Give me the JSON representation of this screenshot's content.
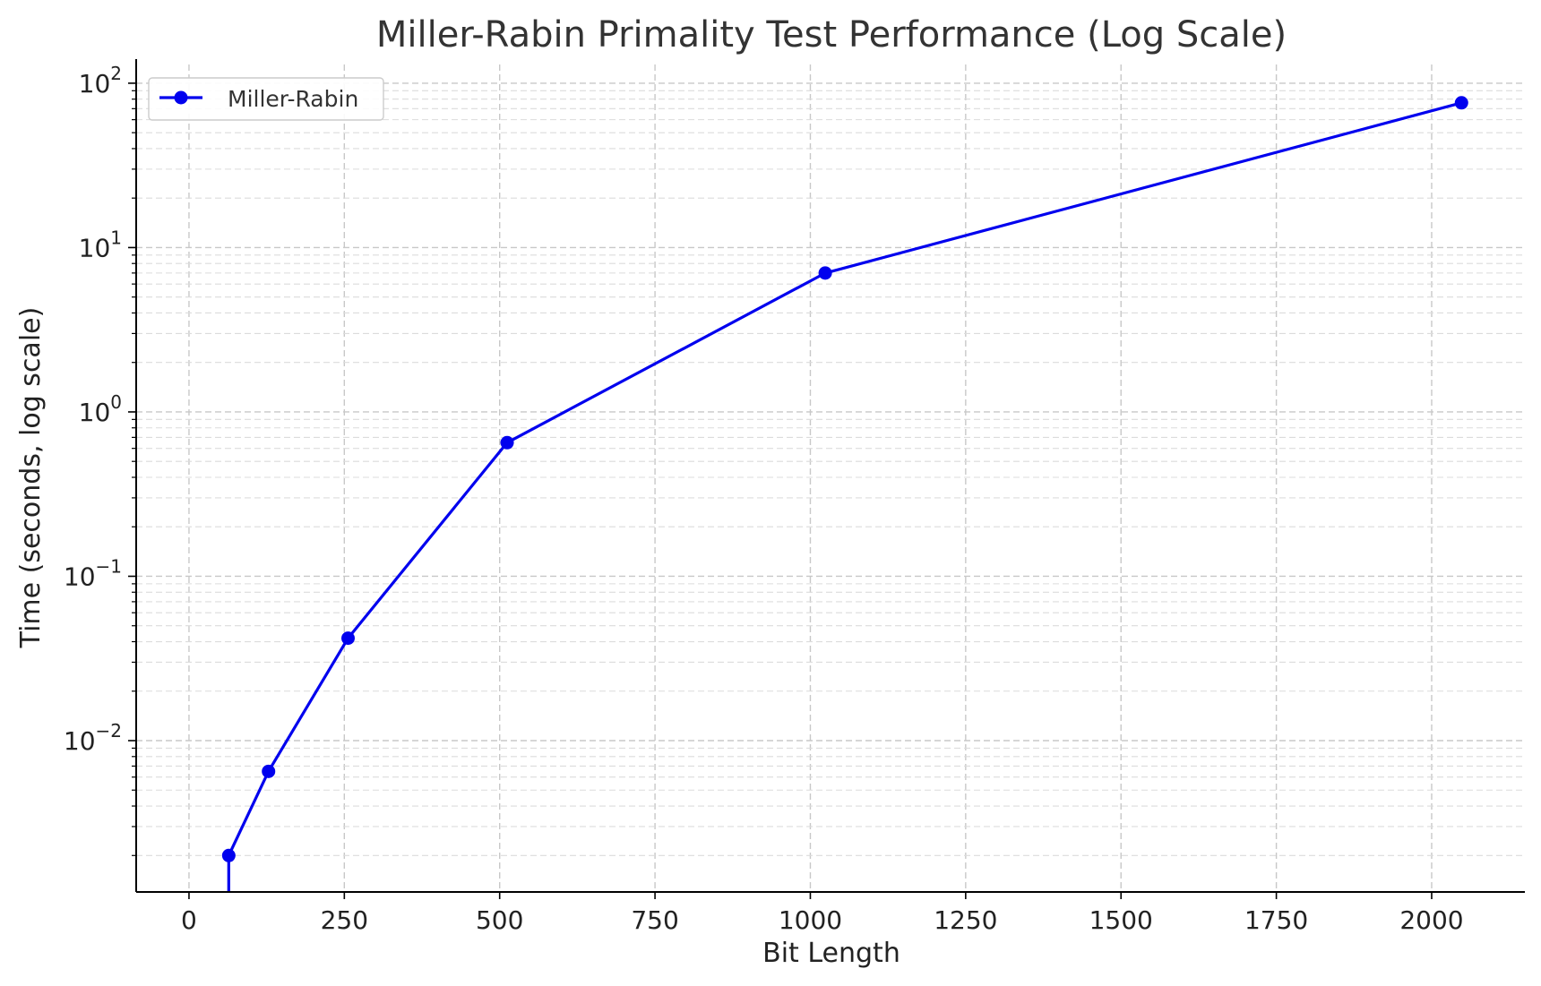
{
  "chart_data": {
    "type": "line",
    "title": "Miller-Rabin Primality Test Performance (Log Scale)",
    "xlabel": "Bit Length",
    "ylabel": "Time (seconds, log scale)",
    "yscale": "log",
    "xlim": [
      -85,
      2150
    ],
    "ylim": [
      0.0012,
      130
    ],
    "grid": true,
    "legend_position": "top-left",
    "x_ticks": [
      0,
      250,
      500,
      750,
      1000,
      1250,
      1500,
      1750,
      2000
    ],
    "x_tick_labels": [
      "0",
      "250",
      "500",
      "750",
      "1000",
      "1250",
      "1500",
      "1750",
      "2000"
    ],
    "y_ticks": [
      0.01,
      0.1,
      1,
      10,
      100
    ],
    "y_tick_labels": [
      {
        "base": "10",
        "exp": "−2"
      },
      {
        "base": "10",
        "exp": "−1"
      },
      {
        "base": "10",
        "exp": "0"
      },
      {
        "base": "10",
        "exp": "1"
      },
      {
        "base": "10",
        "exp": "2"
      }
    ],
    "series": [
      {
        "name": "Miller-Rabin",
        "color": "#0000ee",
        "marker": "circle",
        "x": [
          64,
          128,
          256,
          512,
          1024,
          2048
        ],
        "y": [
          0.002,
          0.0065,
          0.042,
          0.65,
          7.0,
          76.0
        ],
        "lead_in_from_below": true
      }
    ]
  }
}
